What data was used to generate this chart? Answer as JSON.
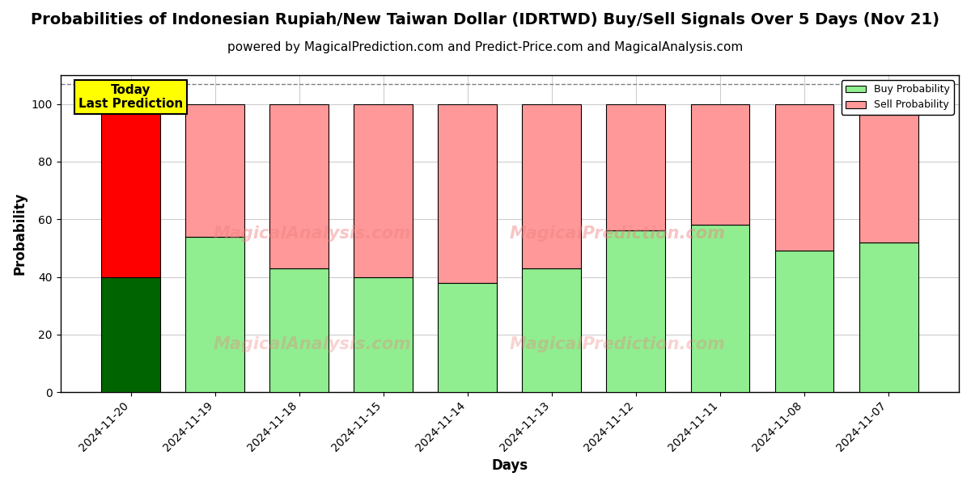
{
  "title": "Probabilities of Indonesian Rupiah/New Taiwan Dollar (IDRTWD) Buy/Sell Signals Over 5 Days (Nov 21)",
  "subtitle": "powered by MagicalPrediction.com and Predict-Price.com and MagicalAnalysis.com",
  "xlabel": "Days",
  "ylabel": "Probability",
  "categories": [
    "2024-11-20",
    "2024-11-19",
    "2024-11-18",
    "2024-11-15",
    "2024-11-14",
    "2024-11-13",
    "2024-11-12",
    "2024-11-11",
    "2024-11-08",
    "2024-11-07"
  ],
  "buy_values": [
    40,
    54,
    43,
    40,
    38,
    43,
    56,
    58,
    49,
    52
  ],
  "sell_values": [
    60,
    46,
    57,
    60,
    62,
    57,
    44,
    42,
    51,
    48
  ],
  "buy_colors": [
    "#006400",
    "#90EE90",
    "#90EE90",
    "#90EE90",
    "#90EE90",
    "#90EE90",
    "#90EE90",
    "#90EE90",
    "#90EE90",
    "#90EE90"
  ],
  "sell_colors": [
    "#FF0000",
    "#FF9999",
    "#FF9999",
    "#FF9999",
    "#FF9999",
    "#FF9999",
    "#FF9999",
    "#FF9999",
    "#FF9999",
    "#FF9999"
  ],
  "today_box_color": "#FFFF00",
  "today_label": "Today\nLast Prediction",
  "ylim": [
    0,
    110
  ],
  "yticks": [
    0,
    20,
    40,
    60,
    80,
    100
  ],
  "dashed_line_y": 107,
  "legend_buy_color": "#90EE90",
  "legend_sell_color": "#FF9999",
  "legend_buy_label": "Buy Probability",
  "legend_sell_label": "Sell Probability",
  "bg_color": "#ffffff",
  "grid_color": "#cccccc",
  "bar_width": 0.7,
  "title_fontsize": 14,
  "subtitle_fontsize": 11,
  "axis_label_fontsize": 12,
  "tick_fontsize": 10,
  "watermark1": "MagicalAnalysis.com",
  "watermark2": "MagicalPrediction.com"
}
